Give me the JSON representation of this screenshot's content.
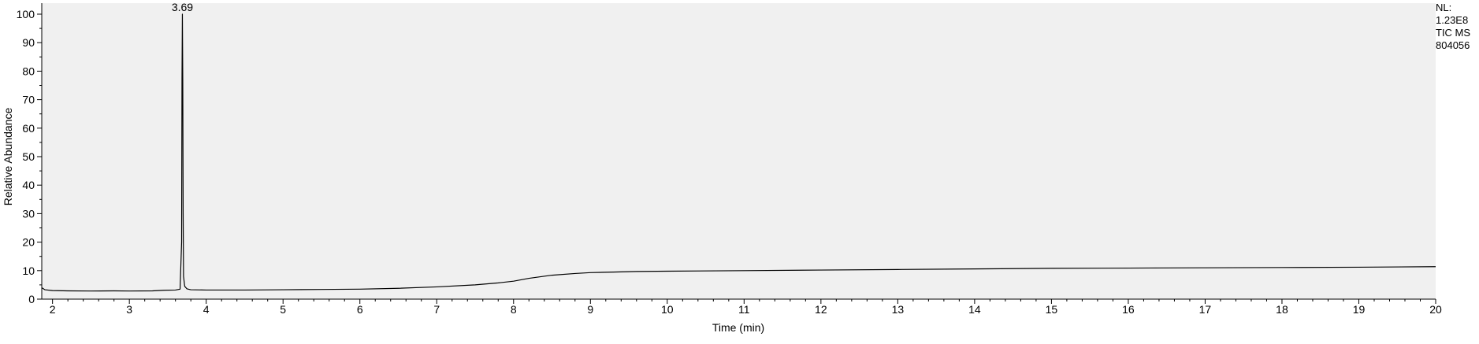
{
  "chart_data": {
    "type": "line",
    "title": "",
    "xlabel": "Time (min)",
    "ylabel": "Relative Abundance",
    "xlim": [
      1.86,
      20
    ],
    "ylim": [
      0,
      100
    ],
    "x_ticks": [
      2,
      3,
      4,
      5,
      6,
      7,
      8,
      9,
      10,
      11,
      12,
      13,
      14,
      15,
      16,
      17,
      18,
      19,
      20
    ],
    "y_ticks": [
      0,
      10,
      20,
      30,
      40,
      50,
      60,
      70,
      80,
      90,
      100
    ],
    "grid": false,
    "peak_labels": [
      {
        "x": 3.69,
        "y": 100,
        "text": "3.69"
      }
    ],
    "series": [
      {
        "x": [
          1.86,
          1.9,
          2.0,
          2.2,
          2.5,
          2.8,
          3.0,
          3.3,
          3.45,
          3.6,
          3.66,
          3.68,
          3.685,
          3.69,
          3.695,
          3.7,
          3.705,
          3.72,
          3.75,
          3.8,
          4.0,
          4.5,
          5.0,
          5.5,
          6.0,
          6.5,
          7.0,
          7.5,
          7.8,
          8.0,
          8.2,
          8.5,
          8.8,
          9.0,
          9.3,
          9.6,
          10.0,
          11.0,
          12.0,
          13.0,
          14.0,
          15.0,
          16.0,
          17.0,
          18.0,
          19.0,
          20.0
        ],
        "y": [
          4.0,
          3.3,
          3.0,
          2.9,
          2.85,
          2.9,
          2.85,
          2.9,
          3.1,
          3.2,
          3.5,
          20,
          77,
          100,
          77,
          30,
          8,
          4.5,
          3.6,
          3.3,
          3.2,
          3.2,
          3.3,
          3.4,
          3.5,
          3.8,
          4.3,
          5.0,
          5.7,
          6.3,
          7.3,
          8.4,
          9.0,
          9.3,
          9.5,
          9.7,
          9.8,
          10.0,
          10.2,
          10.4,
          10.6,
          10.8,
          10.9,
          11.0,
          11.1,
          11.2,
          11.4
        ]
      }
    ]
  },
  "info_box": {
    "line1": "NL:",
    "line2": "1.23E8",
    "line3": "TIC  MS",
    "line4": "804056"
  }
}
